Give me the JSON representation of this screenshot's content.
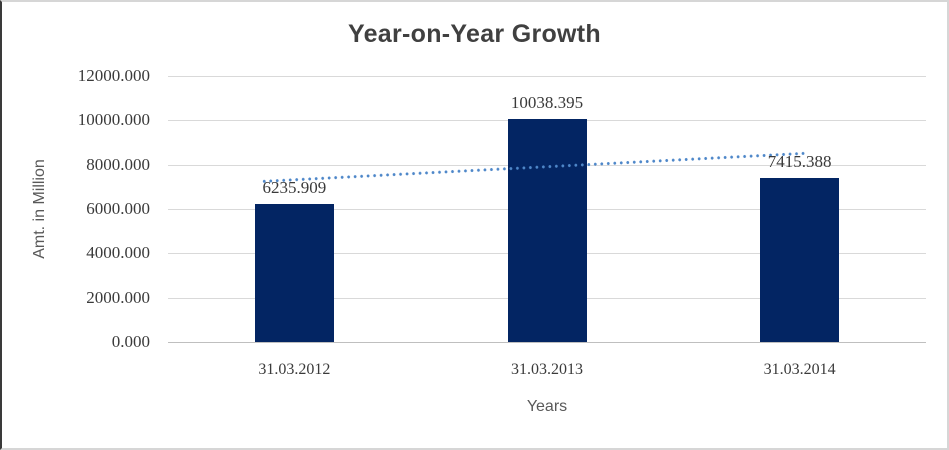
{
  "chart_data": {
    "type": "bar",
    "title": "Year-on-Year Growth",
    "xlabel": "Years",
    "ylabel": "Amt. in Million",
    "categories": [
      "31.03.2012",
      "31.03.2013",
      "31.03.2014"
    ],
    "values": [
      6235.909,
      10038.395,
      7415.388
    ],
    "data_labels": [
      "6235.909",
      "10038.395",
      "7415.388"
    ],
    "ylim": [
      0,
      12000
    ],
    "ytick_step": 2000,
    "yticks": [
      "0.000",
      "2000.000",
      "4000.000",
      "6000.000",
      "8000.000",
      "10000.000",
      "12000.000"
    ],
    "grid": true,
    "legend_position": "none",
    "bar_color": "#032563",
    "gridline_color": "#D9D9D9",
    "axis_line_color": "#BFBFBF",
    "title_color": "#404040",
    "tick_label_color": "#3A3A3A",
    "axis_title_color": "#595959",
    "trendline": {
      "type": "linear",
      "style": "dotted",
      "color": "#4E87C9"
    }
  }
}
